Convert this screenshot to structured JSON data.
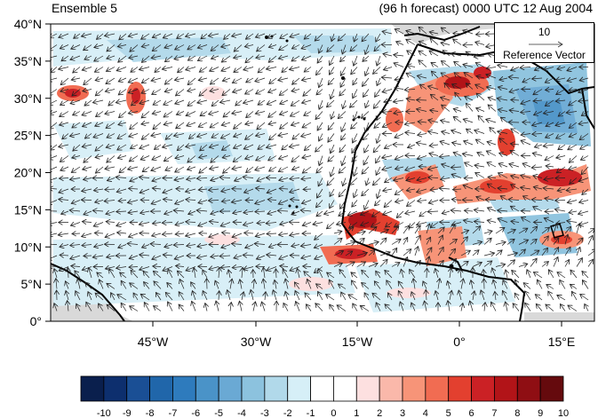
{
  "header": {
    "left_title": "Ensemble 5",
    "right_title": "(96 h forecast) 0000 UTC 12 Aug 2004"
  },
  "map": {
    "lon_labels": [
      "45°W",
      "30°W",
      "15°W",
      "0°",
      "15°E"
    ],
    "lat_labels": [
      "0°",
      "5°N",
      "10°N",
      "15°N",
      "20°N",
      "25°N",
      "30°N",
      "35°N",
      "40°N"
    ],
    "reference_vector": {
      "value": "10",
      "label": "Reference Vector"
    }
  },
  "colorbar": {
    "labels": [
      "-10",
      "-9",
      "-8",
      "-7",
      "-6",
      "-5",
      "-4",
      "-3",
      "-2",
      "-1",
      "0",
      "1",
      "2",
      "3",
      "4",
      "5",
      "6",
      "7",
      "8",
      "9",
      "10"
    ],
    "colors": [
      "#0a1f4d",
      "#0d2f6e",
      "#1a4f95",
      "#2066aa",
      "#2e7bbd",
      "#4a93c8",
      "#6aa9d4",
      "#8cc2de",
      "#b1d9ea",
      "#d6eff7",
      "#ffffff",
      "#ffffff",
      "#fde0e0",
      "#fab8aa",
      "#f79478",
      "#f16c52",
      "#e3402f",
      "#cb2125",
      "#b21418",
      "#8f0e13",
      "#650a0d"
    ]
  }
}
